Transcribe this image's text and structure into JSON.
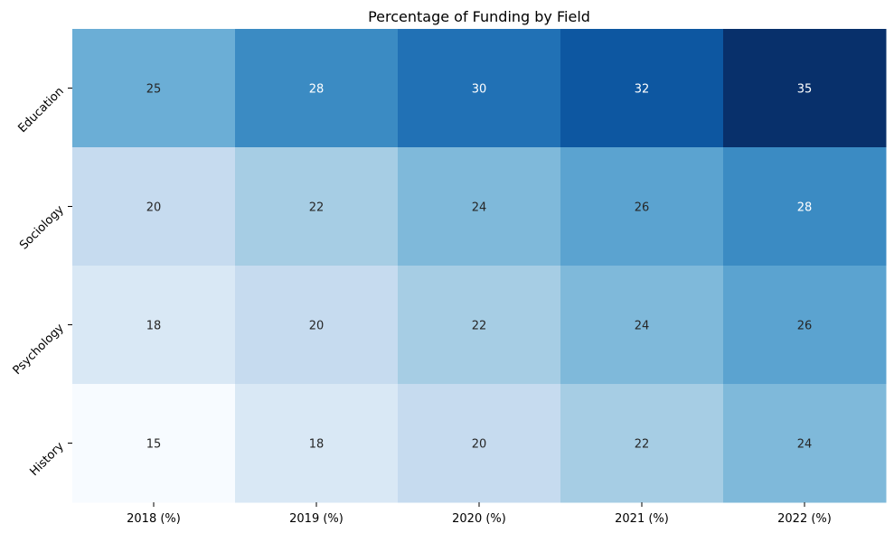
{
  "chart_data": {
    "type": "heatmap",
    "title": "Percentage of Funding by Field",
    "xlabel": "",
    "ylabel": "",
    "x_categories": [
      "2018 (%)",
      "2019 (%)",
      "2020 (%)",
      "2021 (%)",
      "2022 (%)"
    ],
    "y_categories": [
      "Education",
      "Sociology",
      "Psychology",
      "History"
    ],
    "values": [
      [
        25,
        28,
        30,
        32,
        35
      ],
      [
        20,
        22,
        24,
        26,
        28
      ],
      [
        18,
        20,
        22,
        24,
        26
      ],
      [
        15,
        18,
        20,
        22,
        24
      ]
    ],
    "colormap": "Blues",
    "vmin": 15,
    "vmax": 35,
    "annotations": true,
    "colorbar": false,
    "grid": false
  }
}
